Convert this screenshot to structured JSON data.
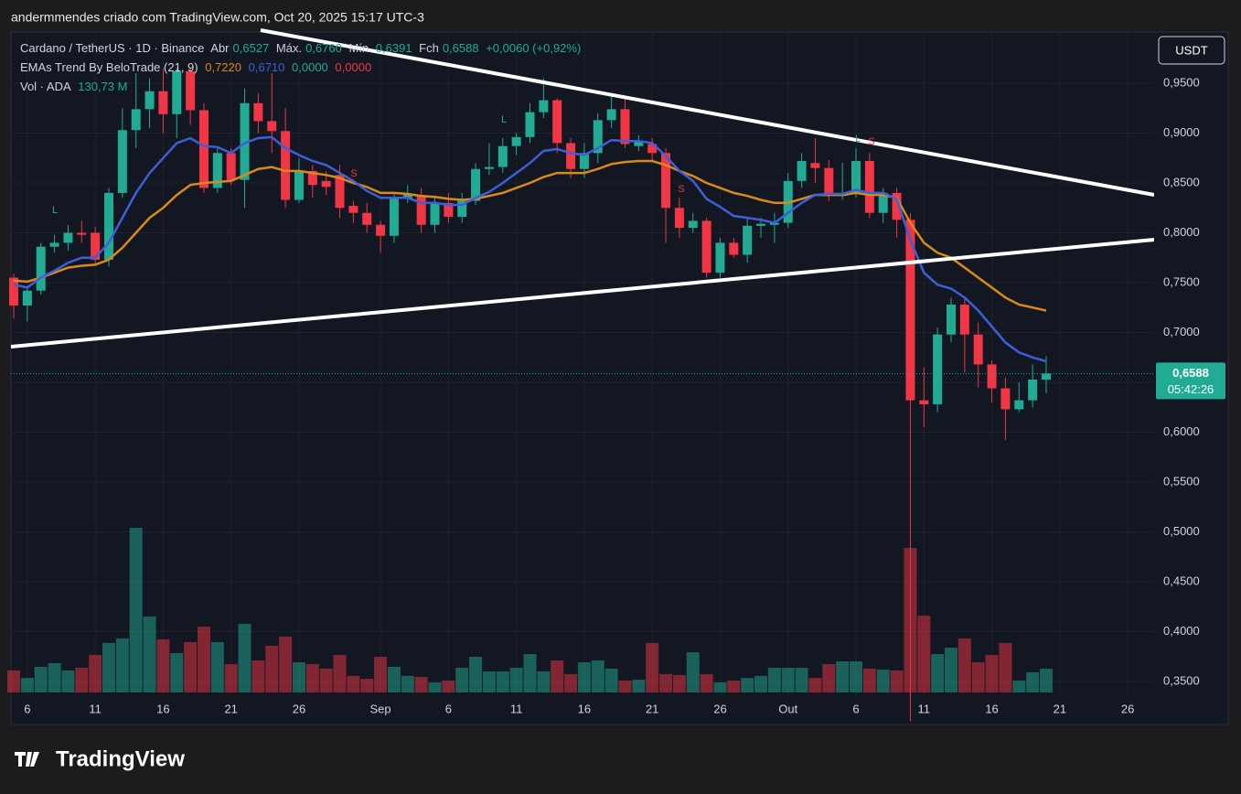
{
  "header": {
    "caption": "andermmendes criado com TradingView.com, Oct 20, 2025 15:17 UTC-3",
    "logo": "TradingView"
  },
  "chart_data": {
    "type": "candlestick",
    "legend": {
      "symbol": "Cardano / TetherUS · 1D · Binance",
      "open_label": "Abr",
      "open": "0,6527",
      "high_label": "Máx.",
      "high": "0,6760",
      "low_label": "Mín.",
      "low": "0,6391",
      "close_label": "Fch",
      "close": "0,6588",
      "change": "+0,0060 (+0,92%)",
      "ema_name": "EMAs Trend By BeloTrade (21, 9)",
      "ema_values": [
        "0,7220",
        "0,6710",
        "0,0000",
        "0,0000"
      ],
      "volume_name": "Vol · ADA",
      "volume": "130,73 M"
    },
    "currency": "USDT",
    "last_price_label": "0,6588",
    "countdown": "05:42:26",
    "signals": [
      "L",
      "L",
      "S",
      "S",
      "L",
      "S"
    ],
    "categories": [
      null,
      "6",
      null,
      null,
      null,
      null,
      "11",
      null,
      null,
      null,
      null,
      "16",
      null,
      null,
      null,
      null,
      "21",
      null,
      null,
      null,
      null,
      "26",
      null,
      null,
      null,
      null,
      null,
      "Sep",
      null,
      null,
      null,
      null,
      "6",
      null,
      null,
      null,
      null,
      "11",
      null,
      null,
      null,
      null,
      "16",
      null,
      null,
      null,
      null,
      "21",
      null,
      null,
      null,
      null,
      "26",
      null,
      null,
      null,
      null,
      "Out",
      null,
      null,
      null,
      null,
      "6",
      null,
      null,
      null,
      null,
      "11",
      null,
      null,
      null,
      null,
      "16",
      null,
      null,
      null,
      null,
      "21",
      null,
      null,
      null,
      null,
      "26"
    ],
    "open": [
      0.755,
      0.727,
      0.742,
      0.786,
      0.79,
      0.8,
      0.8,
      0.773,
      0.84,
      0.903,
      0.924,
      0.942,
      0.919,
      0.962,
      0.923,
      0.845,
      0.88,
      0.853,
      0.93,
      0.912,
      0.902,
      0.833,
      0.862,
      0.852,
      0.858,
      0.827,
      0.82,
      0.808,
      0.797,
      0.834,
      0.838,
      0.808,
      0.83,
      0.816,
      0.832,
      0.864,
      0.866,
      0.887,
      0.896,
      0.921,
      0.933,
      0.89,
      0.864,
      0.88,
      0.913,
      0.924,
      0.887,
      0.889,
      0.88,
      0.825,
      0.805,
      0.812,
      0.76,
      0.79,
      0.778,
      0.807,
      0.808,
      0.81,
      0.852,
      0.87,
      0.865,
      0.837,
      0.84,
      0.872,
      0.82,
      0.84,
      0.813,
      0.632,
      0.628,
      0.698,
      0.728,
      0.698,
      0.668,
      0.644,
      0.623,
      0.632,
      0.6527,
      null,
      null,
      null,
      null,
      null,
      null
    ],
    "high": [
      0.759,
      0.747,
      0.79,
      0.798,
      0.808,
      0.812,
      0.806,
      0.845,
      0.925,
      0.96,
      0.955,
      0.965,
      0.965,
      0.965,
      0.93,
      0.885,
      0.885,
      0.945,
      0.94,
      0.96,
      0.925,
      0.875,
      0.868,
      0.862,
      0.868,
      0.832,
      0.83,
      0.812,
      0.84,
      0.848,
      0.845,
      0.835,
      0.84,
      0.84,
      0.87,
      0.89,
      0.895,
      0.9,
      0.93,
      0.955,
      0.935,
      0.895,
      0.89,
      0.92,
      0.94,
      0.935,
      0.898,
      0.895,
      0.885,
      0.835,
      0.82,
      0.815,
      0.795,
      0.795,
      0.815,
      0.815,
      0.82,
      0.86,
      0.88,
      0.895,
      0.873,
      0.87,
      0.885,
      0.88,
      0.845,
      0.845,
      0.82,
      0.665,
      0.705,
      0.735,
      0.735,
      0.71,
      0.672,
      0.655,
      0.65,
      0.668,
      0.676,
      null,
      null,
      null,
      null,
      null,
      null
    ],
    "low": [
      0.714,
      0.711,
      0.738,
      0.78,
      0.782,
      0.79,
      0.768,
      0.766,
      0.835,
      0.885,
      0.905,
      0.9,
      0.895,
      0.908,
      0.84,
      0.84,
      0.848,
      0.825,
      0.9,
      0.88,
      0.825,
      0.83,
      0.835,
      0.838,
      0.815,
      0.81,
      0.8,
      0.78,
      0.79,
      0.83,
      0.8,
      0.8,
      0.81,
      0.81,
      0.828,
      0.858,
      0.86,
      0.878,
      0.89,
      0.915,
      0.88,
      0.855,
      0.855,
      0.87,
      0.905,
      0.885,
      0.882,
      0.872,
      0.79,
      0.795,
      0.8,
      0.755,
      0.755,
      0.775,
      0.77,
      0.795,
      0.79,
      0.805,
      0.845,
      0.85,
      0.832,
      0.833,
      0.835,
      0.815,
      0.81,
      0.795,
      0.31,
      0.605,
      0.62,
      0.69,
      0.66,
      0.645,
      0.63,
      0.592,
      0.62,
      0.625,
      0.6391,
      null,
      null,
      null,
      null,
      null,
      null
    ],
    "close": [
      0.727,
      0.742,
      0.786,
      0.79,
      0.8,
      0.798,
      0.773,
      0.84,
      0.903,
      0.924,
      0.942,
      0.919,
      0.962,
      0.923,
      0.845,
      0.88,
      0.853,
      0.93,
      0.912,
      0.902,
      0.833,
      0.862,
      0.848,
      0.846,
      0.825,
      0.82,
      0.808,
      0.797,
      0.834,
      0.838,
      0.808,
      0.83,
      0.816,
      0.832,
      0.864,
      0.866,
      0.887,
      0.896,
      0.921,
      0.933,
      0.89,
      0.864,
      0.88,
      0.913,
      0.924,
      0.889,
      0.891,
      0.88,
      0.825,
      0.805,
      0.812,
      0.76,
      0.79,
      0.778,
      0.807,
      0.809,
      0.81,
      0.852,
      0.872,
      0.865,
      0.837,
      0.84,
      0.872,
      0.82,
      0.84,
      0.813,
      0.632,
      0.628,
      0.698,
      0.728,
      0.698,
      0.668,
      0.644,
      0.623,
      0.632,
      0.6528,
      0.6588,
      null,
      null,
      null,
      null,
      null,
      null
    ],
    "volume": [
      121,
      80,
      141,
      161,
      121,
      136,
      206,
      272,
      297,
      905,
      418,
      292,
      216,
      277,
      362,
      277,
      156,
      377,
      176,
      257,
      307,
      166,
      156,
      131,
      206,
      91,
      75,
      196,
      141,
      91,
      86,
      55,
      65,
      136,
      196,
      116,
      116,
      136,
      211,
      116,
      176,
      101,
      166,
      176,
      131,
      65,
      70,
      272,
      101,
      96,
      221,
      101,
      55,
      65,
      80,
      91,
      136,
      136,
      136,
      80,
      156,
      171,
      171,
      131,
      126,
      121,
      794,
      422,
      211,
      246,
      297,
      166,
      206,
      272,
      65,
      111,
      130.73,
      null,
      null,
      null,
      null,
      null,
      null
    ],
    "ema": [
      {
        "color": "#d98a1c",
        "values": [
          0.752,
          0.751,
          0.755,
          0.76,
          0.765,
          0.767,
          0.768,
          0.773,
          0.785,
          0.8,
          0.815,
          0.825,
          0.838,
          0.848,
          0.85,
          0.851,
          0.852,
          0.858,
          0.864,
          0.866,
          0.862,
          0.862,
          0.86,
          0.858,
          0.855,
          0.85,
          0.846,
          0.84,
          0.84,
          0.839,
          0.837,
          0.836,
          0.834,
          0.833,
          0.834,
          0.837,
          0.84,
          0.845,
          0.85,
          0.856,
          0.86,
          0.86,
          0.86,
          0.864,
          0.869,
          0.871,
          0.872,
          0.872,
          0.868,
          0.862,
          0.857,
          0.85,
          0.845,
          0.84,
          0.837,
          0.833,
          0.83,
          0.83,
          0.834,
          0.838,
          0.838,
          0.838,
          0.84,
          0.838,
          0.838,
          0.835,
          0.81,
          0.79,
          0.78,
          0.775,
          0.765,
          0.755,
          0.745,
          0.735,
          0.728,
          0.725,
          0.722,
          null,
          null,
          null,
          null,
          null,
          null
        ]
      },
      {
        "color": "#3d5fd9",
        "values": [
          0.748,
          0.745,
          0.755,
          0.762,
          0.77,
          0.775,
          0.775,
          0.79,
          0.815,
          0.84,
          0.86,
          0.875,
          0.89,
          0.895,
          0.887,
          0.886,
          0.88,
          0.89,
          0.895,
          0.896,
          0.885,
          0.878,
          0.872,
          0.868,
          0.86,
          0.852,
          0.842,
          0.835,
          0.835,
          0.835,
          0.83,
          0.83,
          0.828,
          0.828,
          0.835,
          0.841,
          0.85,
          0.86,
          0.87,
          0.882,
          0.884,
          0.88,
          0.878,
          0.885,
          0.893,
          0.892,
          0.892,
          0.89,
          0.877,
          0.862,
          0.852,
          0.834,
          0.826,
          0.817,
          0.815,
          0.813,
          0.81,
          0.82,
          0.83,
          0.838,
          0.839,
          0.839,
          0.843,
          0.84,
          0.84,
          0.834,
          0.793,
          0.76,
          0.748,
          0.744,
          0.735,
          0.722,
          0.706,
          0.69,
          0.68,
          0.675,
          0.671,
          null,
          null,
          null,
          null,
          null,
          null
        ]
      }
    ],
    "up_color": "#22ab94",
    "down_color": "#f23645",
    "ylim": [
      0.3362,
      0.9968
    ],
    "yticks": [
      {
        "value": 0.35,
        "label": "0,3500"
      },
      {
        "value": 0.4,
        "label": "0,4000"
      },
      {
        "value": 0.45,
        "label": "0,4500"
      },
      {
        "value": 0.5,
        "label": "0,5000"
      },
      {
        "value": 0.55,
        "label": "0,5500"
      },
      {
        "value": 0.6,
        "label": "0,6000"
      },
      {
        "value": 0.65,
        "label": "0,6500"
      },
      {
        "value": 0.7,
        "label": "0,7000"
      },
      {
        "value": 0.75,
        "label": "0,7500"
      },
      {
        "value": 0.8,
        "label": "0,8000"
      },
      {
        "value": 0.85,
        "label": "0,8500"
      },
      {
        "value": 0.9,
        "label": "0,9000"
      },
      {
        "value": 0.95,
        "label": "0,9500"
      }
    ],
    "grid": true
  }
}
